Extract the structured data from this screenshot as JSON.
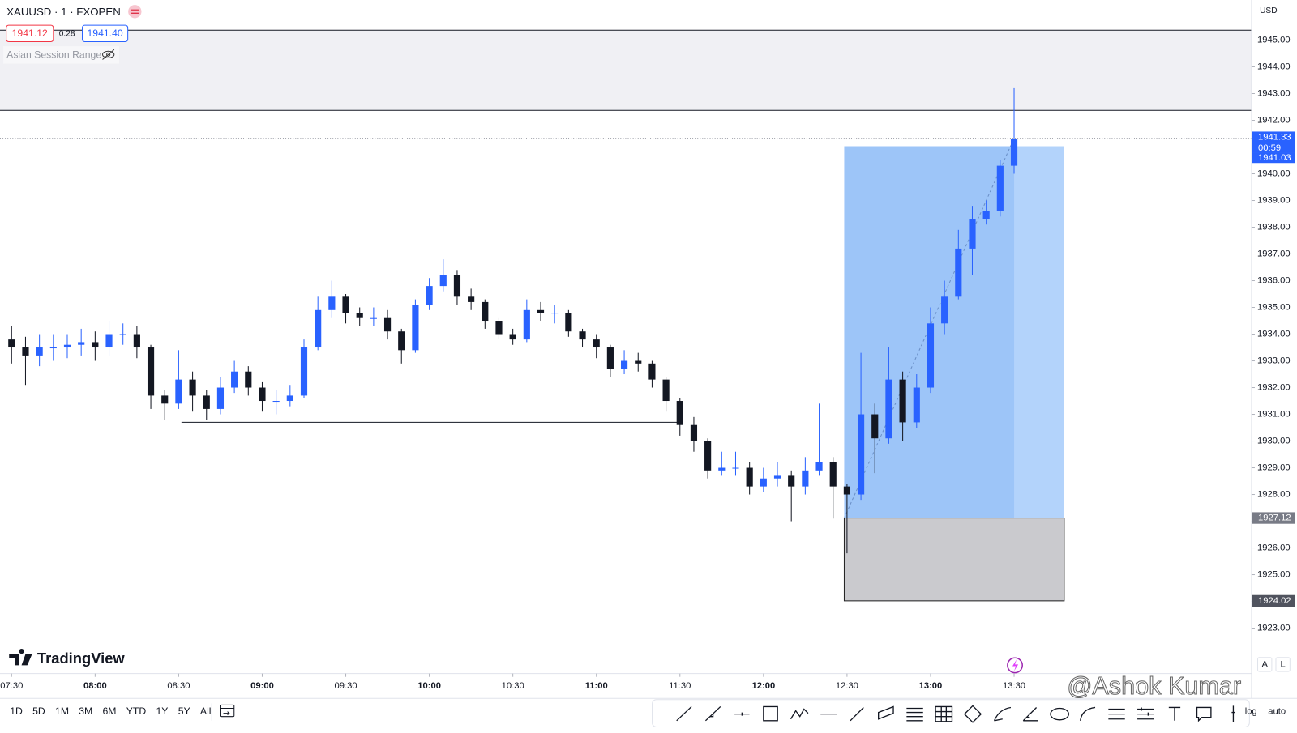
{
  "header": {
    "symbol": "XAUUSD · 1 · FXOPEN",
    "bid": "1941.12",
    "spread": "0.28",
    "ask": "1941.40",
    "indicator": "Asian Session Range",
    "currency": "USD"
  },
  "chart_data": {
    "type": "candlestick",
    "x": [
      "07:30",
      "07:35",
      "07:40",
      "07:45",
      "07:50",
      "07:55",
      "08:00",
      "08:05",
      "08:10",
      "08:15",
      "08:20",
      "08:25",
      "08:30",
      "08:35",
      "08:40",
      "08:45",
      "08:50",
      "08:55",
      "09:00",
      "09:05",
      "09:10",
      "09:15",
      "09:20",
      "09:25",
      "09:30",
      "09:35",
      "09:40",
      "09:45",
      "09:50",
      "09:55",
      "10:00",
      "10:05",
      "10:10",
      "10:15",
      "10:20",
      "10:25",
      "10:30",
      "10:35",
      "10:40",
      "10:45",
      "10:50",
      "10:55",
      "11:00",
      "11:05",
      "11:10",
      "11:15",
      "11:20",
      "11:25",
      "11:30",
      "11:35",
      "11:40",
      "11:45",
      "11:50",
      "11:55",
      "12:00",
      "12:05",
      "12:10",
      "12:15",
      "12:20",
      "12:25",
      "12:30",
      "12:35",
      "12:40",
      "12:45",
      "12:50",
      "12:55",
      "13:00",
      "13:05",
      "13:10",
      "13:15",
      "13:20",
      "13:25",
      "13:30"
    ],
    "open": [
      1933.8,
      1933.5,
      1933.2,
      1933.5,
      1933.5,
      1933.6,
      1933.7,
      1933.5,
      1934.0,
      1934.0,
      1933.5,
      1931.7,
      1931.4,
      1932.3,
      1931.7,
      1931.2,
      1932.0,
      1932.6,
      1932.0,
      1931.5,
      1931.5,
      1931.7,
      1933.5,
      1934.9,
      1935.4,
      1934.8,
      1934.6,
      1934.6,
      1934.1,
      1933.4,
      1935.1,
      1935.8,
      1936.2,
      1935.4,
      1935.2,
      1934.5,
      1934.0,
      1933.8,
      1934.9,
      1934.8,
      1934.8,
      1934.1,
      1933.8,
      1933.5,
      1932.7,
      1933.0,
      1932.9,
      1932.3,
      1931.5,
      1930.6,
      1930.0,
      1928.9,
      1929.0,
      1929.0,
      1928.3,
      1928.6,
      1928.7,
      1928.3,
      1928.9,
      1929.2,
      1928.3,
      1928.0,
      1931.0,
      1930.1,
      1932.3,
      1930.7,
      1932.0,
      1934.4,
      1935.4,
      1937.2,
      1938.3,
      1938.6,
      1940.3
    ],
    "high": [
      1934.3,
      1933.9,
      1934.0,
      1934.0,
      1934.0,
      1934.2,
      1934.1,
      1934.5,
      1934.4,
      1934.3,
      1933.6,
      1931.9,
      1933.4,
      1932.6,
      1931.9,
      1932.4,
      1933.0,
      1932.8,
      1932.2,
      1931.9,
      1932.1,
      1933.8,
      1935.4,
      1936.0,
      1935.5,
      1935.0,
      1935.0,
      1934.9,
      1934.2,
      1935.3,
      1936.1,
      1936.8,
      1936.4,
      1935.7,
      1935.3,
      1934.6,
      1934.2,
      1935.3,
      1935.2,
      1935.1,
      1934.9,
      1934.2,
      1934.0,
      1933.6,
      1933.4,
      1933.3,
      1933.0,
      1932.4,
      1931.6,
      1930.9,
      1930.1,
      1929.6,
      1929.6,
      1929.2,
      1929.0,
      1929.2,
      1928.9,
      1929.4,
      1931.4,
      1929.4,
      1928.4,
      1933.3,
      1931.4,
      1933.5,
      1932.6,
      1932.5,
      1935.0,
      1936.0,
      1937.9,
      1938.8,
      1939.0,
      1940.5,
      1943.2
    ],
    "low": [
      1932.9,
      1932.1,
      1932.8,
      1933.0,
      1933.1,
      1933.2,
      1933.0,
      1933.2,
      1933.6,
      1933.1,
      1931.2,
      1930.8,
      1931.2,
      1931.1,
      1930.8,
      1931.0,
      1931.8,
      1931.7,
      1931.1,
      1931.0,
      1931.3,
      1931.6,
      1933.4,
      1934.6,
      1934.4,
      1934.3,
      1934.3,
      1933.8,
      1932.9,
      1933.3,
      1934.9,
      1935.6,
      1935.1,
      1934.9,
      1934.2,
      1933.8,
      1933.6,
      1933.7,
      1934.5,
      1934.4,
      1933.9,
      1933.5,
      1933.1,
      1932.4,
      1932.5,
      1932.6,
      1932.0,
      1931.1,
      1930.2,
      1929.6,
      1928.6,
      1928.7,
      1928.7,
      1928.0,
      1928.1,
      1928.3,
      1927.0,
      1928.0,
      1928.7,
      1927.1,
      1925.8,
      1927.8,
      1928.8,
      1929.9,
      1930.0,
      1930.5,
      1931.8,
      1934.0,
      1935.3,
      1936.2,
      1938.1,
      1938.4,
      1940.0
    ],
    "close": [
      1933.5,
      1933.2,
      1933.5,
      1933.5,
      1933.6,
      1933.7,
      1933.5,
      1934.0,
      1934.0,
      1933.5,
      1931.7,
      1931.4,
      1932.3,
      1931.7,
      1931.2,
      1932.0,
      1932.6,
      1932.0,
      1931.5,
      1931.5,
      1931.7,
      1933.5,
      1934.9,
      1935.4,
      1934.8,
      1934.6,
      1934.6,
      1934.1,
      1933.4,
      1935.1,
      1935.8,
      1936.2,
      1935.4,
      1935.2,
      1934.5,
      1934.0,
      1933.8,
      1934.9,
      1934.8,
      1934.8,
      1934.1,
      1933.8,
      1933.5,
      1932.7,
      1933.0,
      1932.9,
      1932.3,
      1931.5,
      1930.6,
      1930.0,
      1928.9,
      1929.0,
      1929.0,
      1928.3,
      1928.6,
      1928.7,
      1928.3,
      1928.9,
      1929.2,
      1928.3,
      1928.0,
      1931.0,
      1930.1,
      1932.3,
      1930.7,
      1932.0,
      1934.4,
      1935.4,
      1937.2,
      1938.3,
      1938.6,
      1940.3,
      1941.3
    ],
    "up_color": "#2962ff",
    "down_color": "#131722",
    "ylim": [
      1921.3,
      1946.5
    ],
    "yticks": [
      {
        "value": 1923,
        "label": "1923.00"
      },
      {
        "value": 1924,
        "label": "1924.00"
      },
      {
        "value": 1925,
        "label": "1925.00"
      },
      {
        "value": 1926,
        "label": "1926.00"
      },
      {
        "value": 1927,
        "label": "1927.00"
      },
      {
        "value": 1928,
        "label": "1928.00"
      },
      {
        "value": 1929,
        "label": "1929.00"
      },
      {
        "value": 1930,
        "label": "1930.00"
      },
      {
        "value": 1931,
        "label": "1931.00"
      },
      {
        "value": 1932,
        "label": "1932.00"
      },
      {
        "value": 1933,
        "label": "1933.00"
      },
      {
        "value": 1934,
        "label": "1934.00"
      },
      {
        "value": 1935,
        "label": "1935.00"
      },
      {
        "value": 1936,
        "label": "1936.00"
      },
      {
        "value": 1937,
        "label": "1937.00"
      },
      {
        "value": 1938,
        "label": "1938.00"
      },
      {
        "value": 1939,
        "label": "1939.00"
      },
      {
        "value": 1940,
        "label": "1940.00"
      },
      {
        "value": 1942,
        "label": "1942.00"
      },
      {
        "value": 1943,
        "label": "1943.00"
      },
      {
        "value": 1944,
        "label": "1944.00"
      },
      {
        "value": 1945,
        "label": "1945.00"
      }
    ],
    "xticks": [
      "07:30",
      "08:00",
      "08:30",
      "09:00",
      "09:30",
      "10:00",
      "10:30",
      "11:00",
      "11:30",
      "12:00",
      "12:30",
      "13:00",
      "13:30"
    ],
    "asian_range": [
      1942.37,
      1945.37
    ],
    "level": {
      "value": 1930.7,
      "from": "08:31",
      "to": "11:29"
    },
    "position": {
      "entry": 1927.12,
      "target": 1941.03,
      "stop": 1924.02,
      "start": "12:29",
      "end": "13:48"
    },
    "last_price": 1941.33,
    "countdown": "00:59"
  },
  "branding": "TradingView",
  "watermark": "@Ashok Kumar",
  "toolbar": {
    "ranges": [
      "1D",
      "5D",
      "1M",
      "3M",
      "6M",
      "YTD",
      "1Y",
      "5Y",
      "All"
    ],
    "scale_options": [
      "A",
      "L"
    ],
    "bottom_options": [
      "log",
      "auto"
    ]
  }
}
